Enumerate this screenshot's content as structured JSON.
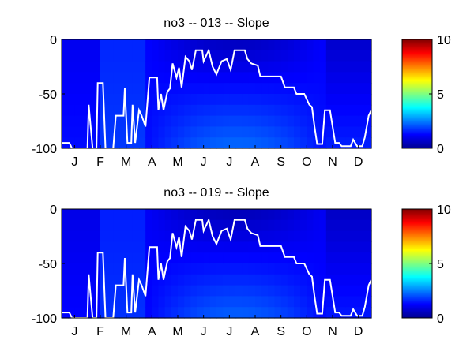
{
  "chart_data": [
    {
      "type": "heatmap",
      "title": "no3 -- 013 -- Slope",
      "x_tick_labels": [
        "J",
        "F",
        "M",
        "A",
        "M",
        "J",
        "J",
        "A",
        "S",
        "O",
        "N",
        "D"
      ],
      "y_tick_labels": [
        "0",
        "-50",
        "-100"
      ],
      "ylim": [
        -100,
        0
      ],
      "colorbar": {
        "ticks": [
          "0",
          "5",
          "10"
        ],
        "range": [
          0,
          10
        ],
        "colormap": "jet"
      },
      "grid": false,
      "mld_line_color": "#ffffff"
    },
    {
      "type": "heatmap",
      "title": "no3 -- 019 -- Slope",
      "x_tick_labels": [
        "J",
        "F",
        "M",
        "A",
        "M",
        "J",
        "J",
        "A",
        "S",
        "O",
        "N",
        "D"
      ],
      "y_tick_labels": [
        "0",
        "-50",
        "-100"
      ],
      "ylim": [
        -100,
        0
      ],
      "colorbar": {
        "ticks": [
          "0",
          "5",
          "10"
        ],
        "range": [
          0,
          10
        ],
        "colormap": "jet"
      },
      "grid": false,
      "mld_line_color": "#ffffff"
    }
  ]
}
